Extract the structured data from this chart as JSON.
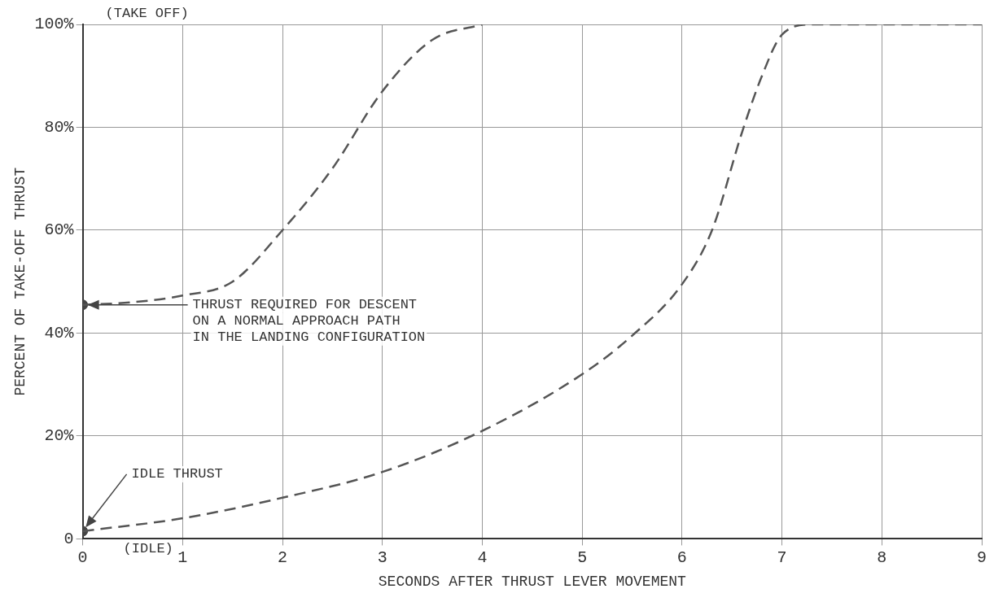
{
  "chart_data": {
    "type": "line",
    "xlabel": "SECONDS AFTER THRUST LEVER MOVEMENT",
    "ylabel": "PERCENT OF TAKE-OFF THRUST",
    "xlim": [
      0,
      9
    ],
    "xticks": [
      0,
      1,
      2,
      3,
      4,
      5,
      6,
      7,
      8,
      9
    ],
    "ylim": [
      0,
      100
    ],
    "yticks": [
      0,
      {
        "value": 20,
        "label": "20%"
      },
      {
        "value": 40,
        "label": "40%"
      },
      {
        "value": 60,
        "label": "60%"
      },
      {
        "value": 80,
        "label": "80%"
      },
      {
        "value": 100,
        "label": "100%"
      }
    ],
    "grid": true,
    "legend": false,
    "line_style": "dashed",
    "marker": "none",
    "series": [
      {
        "color": "#555555",
        "x": [
          0,
          0.5,
          1,
          1.5,
          2,
          2.5,
          3,
          3.5,
          4
        ],
        "values": [
          45.5,
          46,
          47.3,
          50,
          60,
          72,
          87,
          97,
          100
        ]
      },
      {
        "color": "#555555",
        "x": [
          0,
          1,
          2,
          3,
          4,
          5,
          5.5,
          6,
          6.3,
          6.6,
          6.8,
          7,
          7.3,
          8,
          9
        ],
        "values": [
          1.5,
          4,
          8,
          13,
          21,
          32,
          39.5,
          49.5,
          60,
          79,
          90,
          98,
          100,
          100,
          100
        ]
      },
      {
        "type": "scatter",
        "marker": "circle",
        "color": "#444444",
        "x": [
          0,
          0
        ],
        "values": [
          45.5,
          1.5
        ]
      }
    ],
    "annotations": [
      "(TAKE OFF)",
      {
        "text": "THRUST REQUIRED FOR DESCENT\nON A NORMAL APPROACH PATH\nIN THE LANDING CONFIGURATION",
        "x": 0,
        "y": 45.5
      },
      {
        "text": "IDLE THRUST",
        "x": 0,
        "y": 1.5
      },
      "(IDLE)"
    ]
  }
}
